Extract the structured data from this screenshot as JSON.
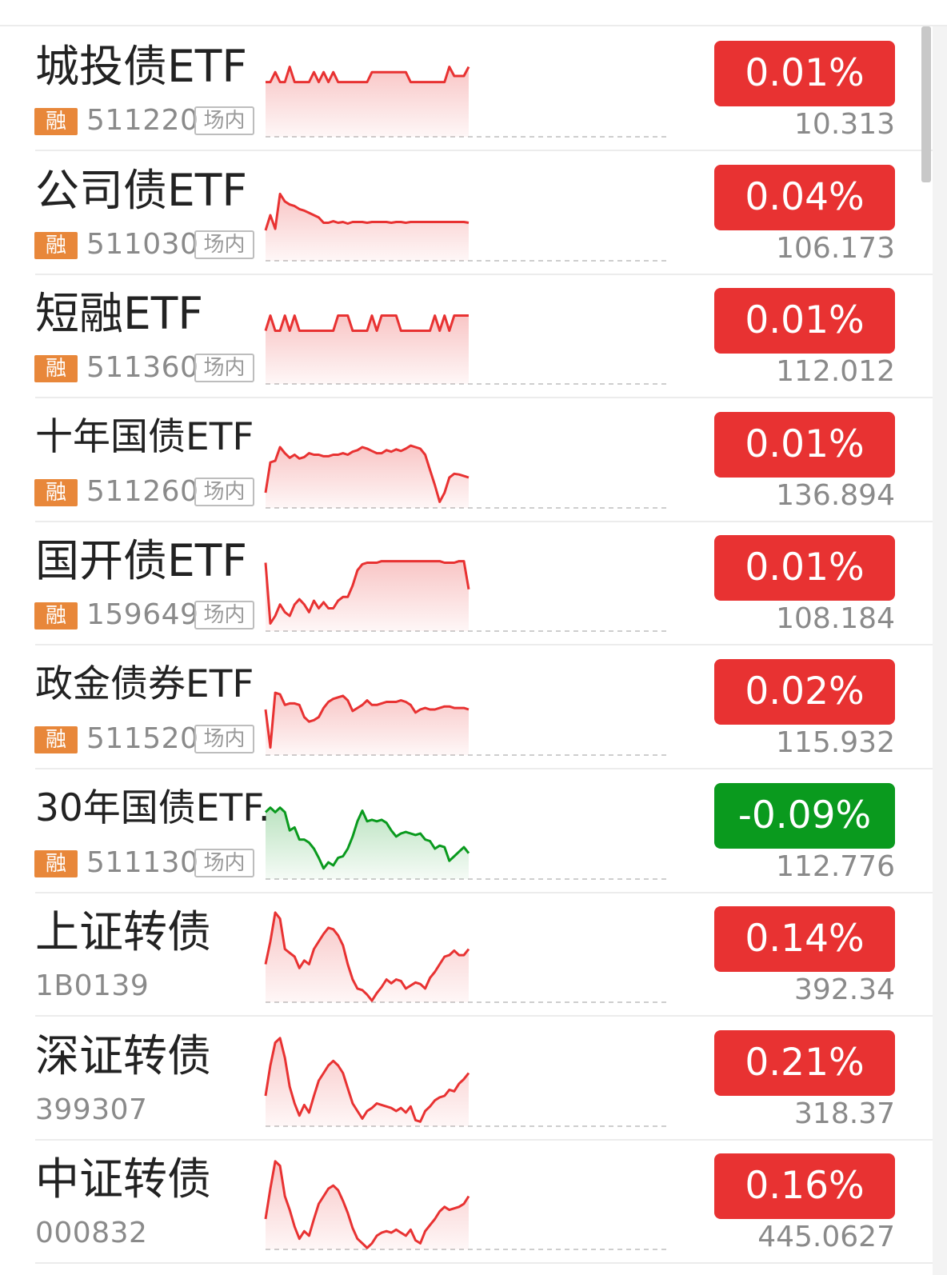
{
  "colors": {
    "up": "#e83232",
    "down": "#0a9a1e",
    "margin_tag": "#e8873a"
  },
  "rows": [
    {
      "name": "城投债ETF",
      "margin_tag": "融",
      "code": "511220",
      "venue_tag": "场内",
      "change": "0.01%",
      "price": "10.313",
      "trend": "up",
      "spark": [
        72,
        72,
        85,
        72,
        72,
        92,
        72,
        72,
        72,
        72,
        85,
        72,
        85,
        72,
        85,
        72,
        72,
        72,
        72,
        72,
        72,
        72,
        85,
        85,
        85,
        85,
        85,
        85,
        85,
        85,
        72,
        72,
        72,
        72,
        72,
        72,
        72,
        72,
        92,
        80,
        80,
        80,
        92
      ]
    },
    {
      "name": "公司债ETF",
      "margin_tag": "融",
      "code": "511030",
      "venue_tag": "场内",
      "change": "0.04%",
      "price": "106.173",
      "trend": "up",
      "spark": [
        40,
        60,
        42,
        88,
        78,
        74,
        72,
        68,
        66,
        63,
        60,
        57,
        50,
        50,
        52,
        50,
        51,
        49,
        51,
        51,
        51,
        50,
        51,
        51,
        51,
        51,
        50,
        51,
        51,
        50,
        51,
        51,
        51,
        51,
        51,
        51,
        51,
        51,
        51,
        51,
        51,
        51,
        50
      ]
    },
    {
      "name": "短融ETF",
      "margin_tag": "融",
      "code": "511360",
      "venue_tag": "场内",
      "change": "0.01%",
      "price": "112.012",
      "trend": "up",
      "spark": [
        70,
        90,
        70,
        70,
        90,
        70,
        90,
        70,
        70,
        70,
        70,
        70,
        70,
        70,
        70,
        90,
        90,
        90,
        70,
        70,
        70,
        70,
        90,
        70,
        90,
        90,
        90,
        90,
        70,
        70,
        70,
        70,
        70,
        70,
        70,
        90,
        70,
        90,
        70,
        90,
        90,
        90,
        90
      ]
    },
    {
      "name": "十年国债ETF",
      "margin_tag": "融",
      "code": "511260",
      "venue_tag": "场内",
      "change": "0.01%",
      "price": "136.894",
      "trend": "up",
      "spark": [
        20,
        60,
        62,
        80,
        72,
        66,
        70,
        65,
        67,
        72,
        70,
        70,
        68,
        68,
        70,
        70,
        72,
        70,
        74,
        76,
        80,
        78,
        75,
        72,
        72,
        76,
        74,
        77,
        75,
        78,
        82,
        80,
        78,
        70,
        50,
        30,
        8,
        20,
        40,
        45,
        44,
        42,
        40
      ]
    },
    {
      "name": "国开债ETF",
      "margin_tag": "融",
      "code": "159649",
      "venue_tag": "场内",
      "change": "0.01%",
      "price": "108.184",
      "trend": "up",
      "spark": [
        90,
        10,
        20,
        35,
        25,
        20,
        35,
        42,
        35,
        25,
        40,
        30,
        38,
        30,
        30,
        40,
        45,
        45,
        60,
        80,
        88,
        90,
        90,
        90,
        92,
        92,
        92,
        92,
        92,
        92,
        92,
        92,
        92,
        92,
        92,
        92,
        92,
        90,
        90,
        90,
        92,
        92,
        55
      ]
    },
    {
      "name": "政金债券ETF",
      "margin_tag": "融",
      "code": "511520",
      "venue_tag": "场内",
      "change": "0.02%",
      "price": "115.932",
      "trend": "up",
      "spark": [
        60,
        10,
        82,
        80,
        66,
        68,
        68,
        66,
        50,
        44,
        46,
        50,
        62,
        70,
        74,
        76,
        78,
        72,
        58,
        62,
        66,
        72,
        66,
        66,
        68,
        70,
        70,
        70,
        72,
        70,
        66,
        56,
        60,
        62,
        60,
        60,
        62,
        64,
        64,
        62,
        62,
        62,
        60
      ]
    },
    {
      "name": "30年国债ETF...",
      "margin_tag": "融",
      "code": "511130",
      "venue_tag": "场内",
      "change": "-0.09%",
      "price": "112.776",
      "trend": "down",
      "spark": [
        88,
        94,
        88,
        94,
        88,
        64,
        68,
        52,
        52,
        48,
        40,
        28,
        14,
        22,
        18,
        28,
        30,
        40,
        56,
        76,
        90,
        76,
        78,
        76,
        78,
        74,
        64,
        56,
        60,
        62,
        60,
        58,
        60,
        52,
        50,
        40,
        44,
        42,
        24,
        30,
        36,
        42,
        34
      ]
    },
    {
      "name": "上证转债",
      "margin_tag": "",
      "code": "1B0139",
      "venue_tag": "",
      "change": "0.14%",
      "price": "392.34",
      "trend": "up",
      "spark": [
        50,
        80,
        118,
        110,
        70,
        65,
        60,
        45,
        55,
        50,
        70,
        80,
        90,
        98,
        96,
        88,
        75,
        50,
        30,
        18,
        16,
        10,
        2,
        12,
        20,
        30,
        25,
        30,
        28,
        18,
        22,
        26,
        24,
        18,
        32,
        40,
        50,
        60,
        62,
        68,
        62,
        62,
        70
      ]
    },
    {
      "name": "深证转债",
      "margin_tag": "",
      "code": "399307",
      "venue_tag": "",
      "change": "0.21%",
      "price": "318.37",
      "trend": "up",
      "spark": [
        40,
        80,
        110,
        116,
        90,
        52,
        30,
        14,
        28,
        18,
        40,
        60,
        70,
        80,
        86,
        80,
        70,
        50,
        30,
        20,
        10,
        20,
        24,
        30,
        28,
        26,
        24,
        20,
        24,
        18,
        26,
        8,
        6,
        20,
        26,
        34,
        38,
        40,
        48,
        46,
        56,
        62,
        70
      ]
    },
    {
      "name": "中证转债",
      "margin_tag": "",
      "code": "000832",
      "venue_tag": "",
      "change": "0.16%",
      "price": "445.0627",
      "trend": "up",
      "spark": [
        40,
        80,
        116,
        110,
        70,
        52,
        30,
        14,
        24,
        18,
        40,
        60,
        70,
        80,
        84,
        78,
        64,
        48,
        28,
        14,
        8,
        2,
        8,
        18,
        22,
        24,
        22,
        26,
        22,
        18,
        26,
        12,
        8,
        24,
        32,
        40,
        50,
        56,
        52,
        54,
        56,
        60,
        70
      ]
    }
  ]
}
